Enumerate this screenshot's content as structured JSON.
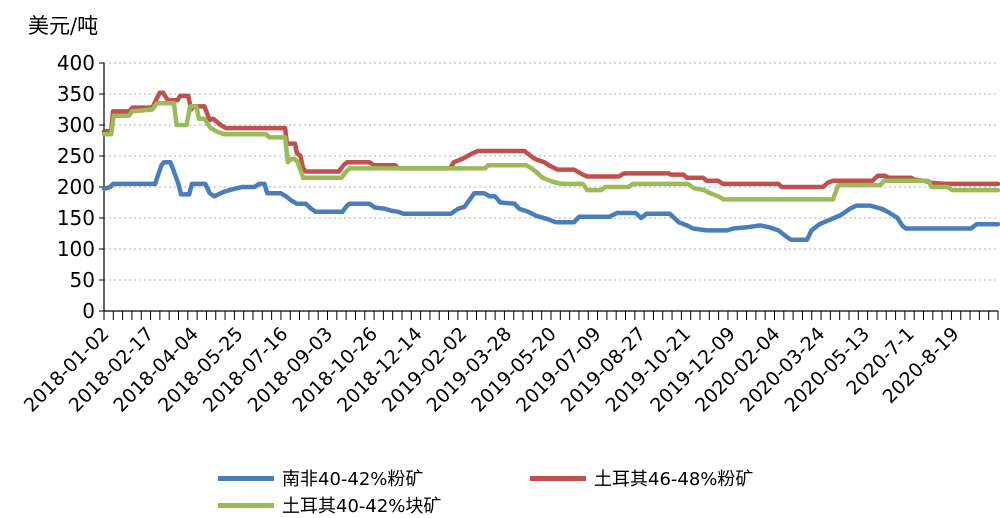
{
  "chart_data": {
    "type": "line",
    "ylabel": "美元/吨",
    "ylim": [
      0,
      400
    ],
    "yticks": [
      0,
      50,
      100,
      150,
      200,
      250,
      300,
      350,
      400
    ],
    "xtick_labels": [
      "2018-01-02",
      "2018-02-17",
      "2018-04-04",
      "2018-05-25",
      "2018-07-16",
      "2018-09-03",
      "2018-10-26",
      "2018-12-14",
      "2019-02-02",
      "2019-03-28",
      "2019-05-20",
      "2019-07-09",
      "2019-08-27",
      "2019-10-21",
      "2019-12-09",
      "2020-02-04",
      "2020-03-24",
      "2020-05-13",
      "2020-7-1",
      "2020-8-19"
    ],
    "x_range": [
      "2018-01-02",
      "2020-09-25"
    ],
    "grid": "horizontal-dotted",
    "legend_position": "bottom",
    "series": [
      {
        "name": "南非40-42%粉矿",
        "color": "#4a7ebb",
        "points": [
          [
            "2018-01-02",
            197
          ],
          [
            "2018-01-09",
            200
          ],
          [
            "2018-01-12",
            205
          ],
          [
            "2018-02-28",
            205
          ],
          [
            "2018-03-03",
            218
          ],
          [
            "2018-03-07",
            235
          ],
          [
            "2018-03-10",
            240
          ],
          [
            "2018-03-17",
            240
          ],
          [
            "2018-03-21",
            225
          ],
          [
            "2018-03-26",
            205
          ],
          [
            "2018-03-29",
            188
          ],
          [
            "2018-04-07",
            188
          ],
          [
            "2018-04-10",
            205
          ],
          [
            "2018-04-25",
            205
          ],
          [
            "2018-04-30",
            190
          ],
          [
            "2018-05-05",
            185
          ],
          [
            "2018-05-15",
            192
          ],
          [
            "2018-05-22",
            195
          ],
          [
            "2018-06-05",
            200
          ],
          [
            "2018-06-19",
            200
          ],
          [
            "2018-06-24",
            205
          ],
          [
            "2018-06-30",
            205
          ],
          [
            "2018-07-03",
            190
          ],
          [
            "2018-07-18",
            190
          ],
          [
            "2018-07-24",
            185
          ],
          [
            "2018-07-30",
            178
          ],
          [
            "2018-08-05",
            173
          ],
          [
            "2018-08-15",
            173
          ],
          [
            "2018-08-21",
            165
          ],
          [
            "2018-08-26",
            160
          ],
          [
            "2018-09-25",
            160
          ],
          [
            "2018-09-30",
            170
          ],
          [
            "2018-10-03",
            173
          ],
          [
            "2018-10-25",
            173
          ],
          [
            "2018-10-31",
            167
          ],
          [
            "2018-11-11",
            165
          ],
          [
            "2018-11-18",
            162
          ],
          [
            "2018-11-26",
            160
          ],
          [
            "2018-12-02",
            157
          ],
          [
            "2019-01-24",
            157
          ],
          [
            "2019-02-01",
            165
          ],
          [
            "2019-02-08",
            168
          ],
          [
            "2019-02-14",
            180
          ],
          [
            "2019-02-19",
            190
          ],
          [
            "2019-03-02",
            190
          ],
          [
            "2019-03-08",
            185
          ],
          [
            "2019-03-14",
            185
          ],
          [
            "2019-03-20",
            175
          ],
          [
            "2019-04-05",
            173
          ],
          [
            "2019-04-10",
            165
          ],
          [
            "2019-04-20",
            160
          ],
          [
            "2019-04-30",
            153
          ],
          [
            "2019-05-12",
            148
          ],
          [
            "2019-05-21",
            143
          ],
          [
            "2019-06-10",
            143
          ],
          [
            "2019-06-16",
            152
          ],
          [
            "2019-07-20",
            152
          ],
          [
            "2019-07-28",
            158
          ],
          [
            "2019-08-18",
            158
          ],
          [
            "2019-08-24",
            150
          ],
          [
            "2019-08-30",
            157
          ],
          [
            "2019-09-25",
            157
          ],
          [
            "2019-09-30",
            150
          ],
          [
            "2019-10-05",
            143
          ],
          [
            "2019-10-14",
            138
          ],
          [
            "2019-10-21",
            133
          ],
          [
            "2019-11-05",
            130
          ],
          [
            "2019-11-28",
            130
          ],
          [
            "2019-12-05",
            133
          ],
          [
            "2019-12-20",
            135
          ],
          [
            "2020-01-04",
            138
          ],
          [
            "2020-01-14",
            135
          ],
          [
            "2020-01-24",
            130
          ],
          [
            "2020-02-02",
            120
          ],
          [
            "2020-02-07",
            115
          ],
          [
            "2020-02-25",
            115
          ],
          [
            "2020-03-01",
            130
          ],
          [
            "2020-03-10",
            140
          ],
          [
            "2020-03-18",
            145
          ],
          [
            "2020-03-26",
            150
          ],
          [
            "2020-04-03",
            155
          ],
          [
            "2020-04-13",
            165
          ],
          [
            "2020-04-20",
            170
          ],
          [
            "2020-05-05",
            170
          ],
          [
            "2020-05-18",
            165
          ],
          [
            "2020-05-25",
            160
          ],
          [
            "2020-06-05",
            150
          ],
          [
            "2020-06-10",
            138
          ],
          [
            "2020-06-14",
            133
          ],
          [
            "2020-08-26",
            133
          ],
          [
            "2020-09-01",
            140
          ],
          [
            "2020-09-25",
            140
          ]
        ]
      },
      {
        "name": "土耳其46-48%粉矿",
        "color": "#c0504d",
        "points": [
          [
            "2018-01-02",
            290
          ],
          [
            "2018-01-10",
            290
          ],
          [
            "2018-01-12",
            322
          ],
          [
            "2018-01-30",
            322
          ],
          [
            "2018-02-03",
            328
          ],
          [
            "2018-02-25",
            328
          ],
          [
            "2018-03-01",
            340
          ],
          [
            "2018-03-05",
            352
          ],
          [
            "2018-03-09",
            352
          ],
          [
            "2018-03-14",
            340
          ],
          [
            "2018-03-25",
            340
          ],
          [
            "2018-03-28",
            347
          ],
          [
            "2018-04-06",
            347
          ],
          [
            "2018-04-09",
            325
          ],
          [
            "2018-04-12",
            330
          ],
          [
            "2018-04-24",
            330
          ],
          [
            "2018-04-30",
            308
          ],
          [
            "2018-05-04",
            310
          ],
          [
            "2018-05-12",
            300
          ],
          [
            "2018-05-18",
            295
          ],
          [
            "2018-07-23",
            295
          ],
          [
            "2018-07-25",
            270
          ],
          [
            "2018-08-03",
            270
          ],
          [
            "2018-08-05",
            255
          ],
          [
            "2018-08-09",
            250
          ],
          [
            "2018-08-12",
            230
          ],
          [
            "2018-08-15",
            225
          ],
          [
            "2018-09-21",
            225
          ],
          [
            "2018-09-26",
            235
          ],
          [
            "2018-09-30",
            240
          ],
          [
            "2018-10-25",
            240
          ],
          [
            "2018-10-30",
            235
          ],
          [
            "2018-11-23",
            235
          ],
          [
            "2018-11-26",
            230
          ],
          [
            "2019-01-23",
            230
          ],
          [
            "2019-01-27",
            240
          ],
          [
            "2019-02-05",
            245
          ],
          [
            "2019-02-18",
            255
          ],
          [
            "2019-02-23",
            258
          ],
          [
            "2019-04-16",
            258
          ],
          [
            "2019-04-23",
            250
          ],
          [
            "2019-04-28",
            245
          ],
          [
            "2019-05-08",
            240
          ],
          [
            "2019-05-13",
            235
          ],
          [
            "2019-05-23",
            228
          ],
          [
            "2019-06-10",
            228
          ],
          [
            "2019-06-20",
            220
          ],
          [
            "2019-06-25",
            217
          ],
          [
            "2019-07-30",
            217
          ],
          [
            "2019-08-05",
            222
          ],
          [
            "2019-09-24",
            222
          ],
          [
            "2019-09-26",
            220
          ],
          [
            "2019-10-10",
            220
          ],
          [
            "2019-10-14",
            215
          ],
          [
            "2019-11-01",
            215
          ],
          [
            "2019-11-05",
            210
          ],
          [
            "2019-11-18",
            210
          ],
          [
            "2019-11-23",
            205
          ],
          [
            "2020-01-24",
            205
          ],
          [
            "2020-01-28",
            200
          ],
          [
            "2020-03-14",
            200
          ],
          [
            "2020-03-19",
            207
          ],
          [
            "2020-03-25",
            210
          ],
          [
            "2020-05-08",
            210
          ],
          [
            "2020-05-14",
            218
          ],
          [
            "2020-05-22",
            218
          ],
          [
            "2020-05-26",
            215
          ],
          [
            "2020-06-20",
            215
          ],
          [
            "2020-06-24",
            212
          ],
          [
            "2020-07-05",
            210
          ],
          [
            "2020-07-12",
            207
          ],
          [
            "2020-07-26",
            205
          ],
          [
            "2020-09-25",
            205
          ]
        ]
      },
      {
        "name": "土耳其40-42%块矿",
        "color": "#9bbb59",
        "points": [
          [
            "2018-01-02",
            285
          ],
          [
            "2018-01-10",
            285
          ],
          [
            "2018-01-13",
            315
          ],
          [
            "2018-01-30",
            315
          ],
          [
            "2018-02-02",
            322
          ],
          [
            "2018-02-25",
            325
          ],
          [
            "2018-03-02",
            335
          ],
          [
            "2018-03-21",
            335
          ],
          [
            "2018-03-24",
            300
          ],
          [
            "2018-04-04",
            300
          ],
          [
            "2018-04-08",
            330
          ],
          [
            "2018-04-15",
            330
          ],
          [
            "2018-04-18",
            310
          ],
          [
            "2018-04-24",
            310
          ],
          [
            "2018-05-01",
            295
          ],
          [
            "2018-05-07",
            290
          ],
          [
            "2018-05-16",
            285
          ],
          [
            "2018-07-02",
            285
          ],
          [
            "2018-07-05",
            280
          ],
          [
            "2018-07-23",
            280
          ],
          [
            "2018-07-26",
            240
          ],
          [
            "2018-07-30",
            245
          ],
          [
            "2018-08-03",
            245
          ],
          [
            "2018-08-06",
            240
          ],
          [
            "2018-08-12",
            215
          ],
          [
            "2018-09-24",
            215
          ],
          [
            "2018-09-29",
            225
          ],
          [
            "2018-10-03",
            230
          ],
          [
            "2018-10-25",
            230
          ],
          [
            "2019-03-03",
            230
          ],
          [
            "2019-03-06",
            235
          ],
          [
            "2019-04-18",
            235
          ],
          [
            "2019-04-24",
            230
          ],
          [
            "2019-04-30",
            223
          ],
          [
            "2019-05-06",
            215
          ],
          [
            "2019-05-18",
            208
          ],
          [
            "2019-05-28",
            205
          ],
          [
            "2019-06-20",
            205
          ],
          [
            "2019-06-25",
            195
          ],
          [
            "2019-07-10",
            195
          ],
          [
            "2019-07-15",
            200
          ],
          [
            "2019-08-10",
            200
          ],
          [
            "2019-08-15",
            205
          ],
          [
            "2019-10-15",
            205
          ],
          [
            "2019-10-22",
            198
          ],
          [
            "2019-11-02",
            195
          ],
          [
            "2019-11-09",
            190
          ],
          [
            "2019-11-18",
            185
          ],
          [
            "2019-11-24",
            180
          ],
          [
            "2020-03-25",
            180
          ],
          [
            "2020-03-31",
            203
          ],
          [
            "2020-05-17",
            203
          ],
          [
            "2020-05-21",
            210
          ],
          [
            "2020-07-09",
            210
          ],
          [
            "2020-07-13",
            200
          ],
          [
            "2020-07-31",
            200
          ],
          [
            "2020-08-05",
            195
          ],
          [
            "2020-09-25",
            195
          ]
        ]
      }
    ]
  }
}
